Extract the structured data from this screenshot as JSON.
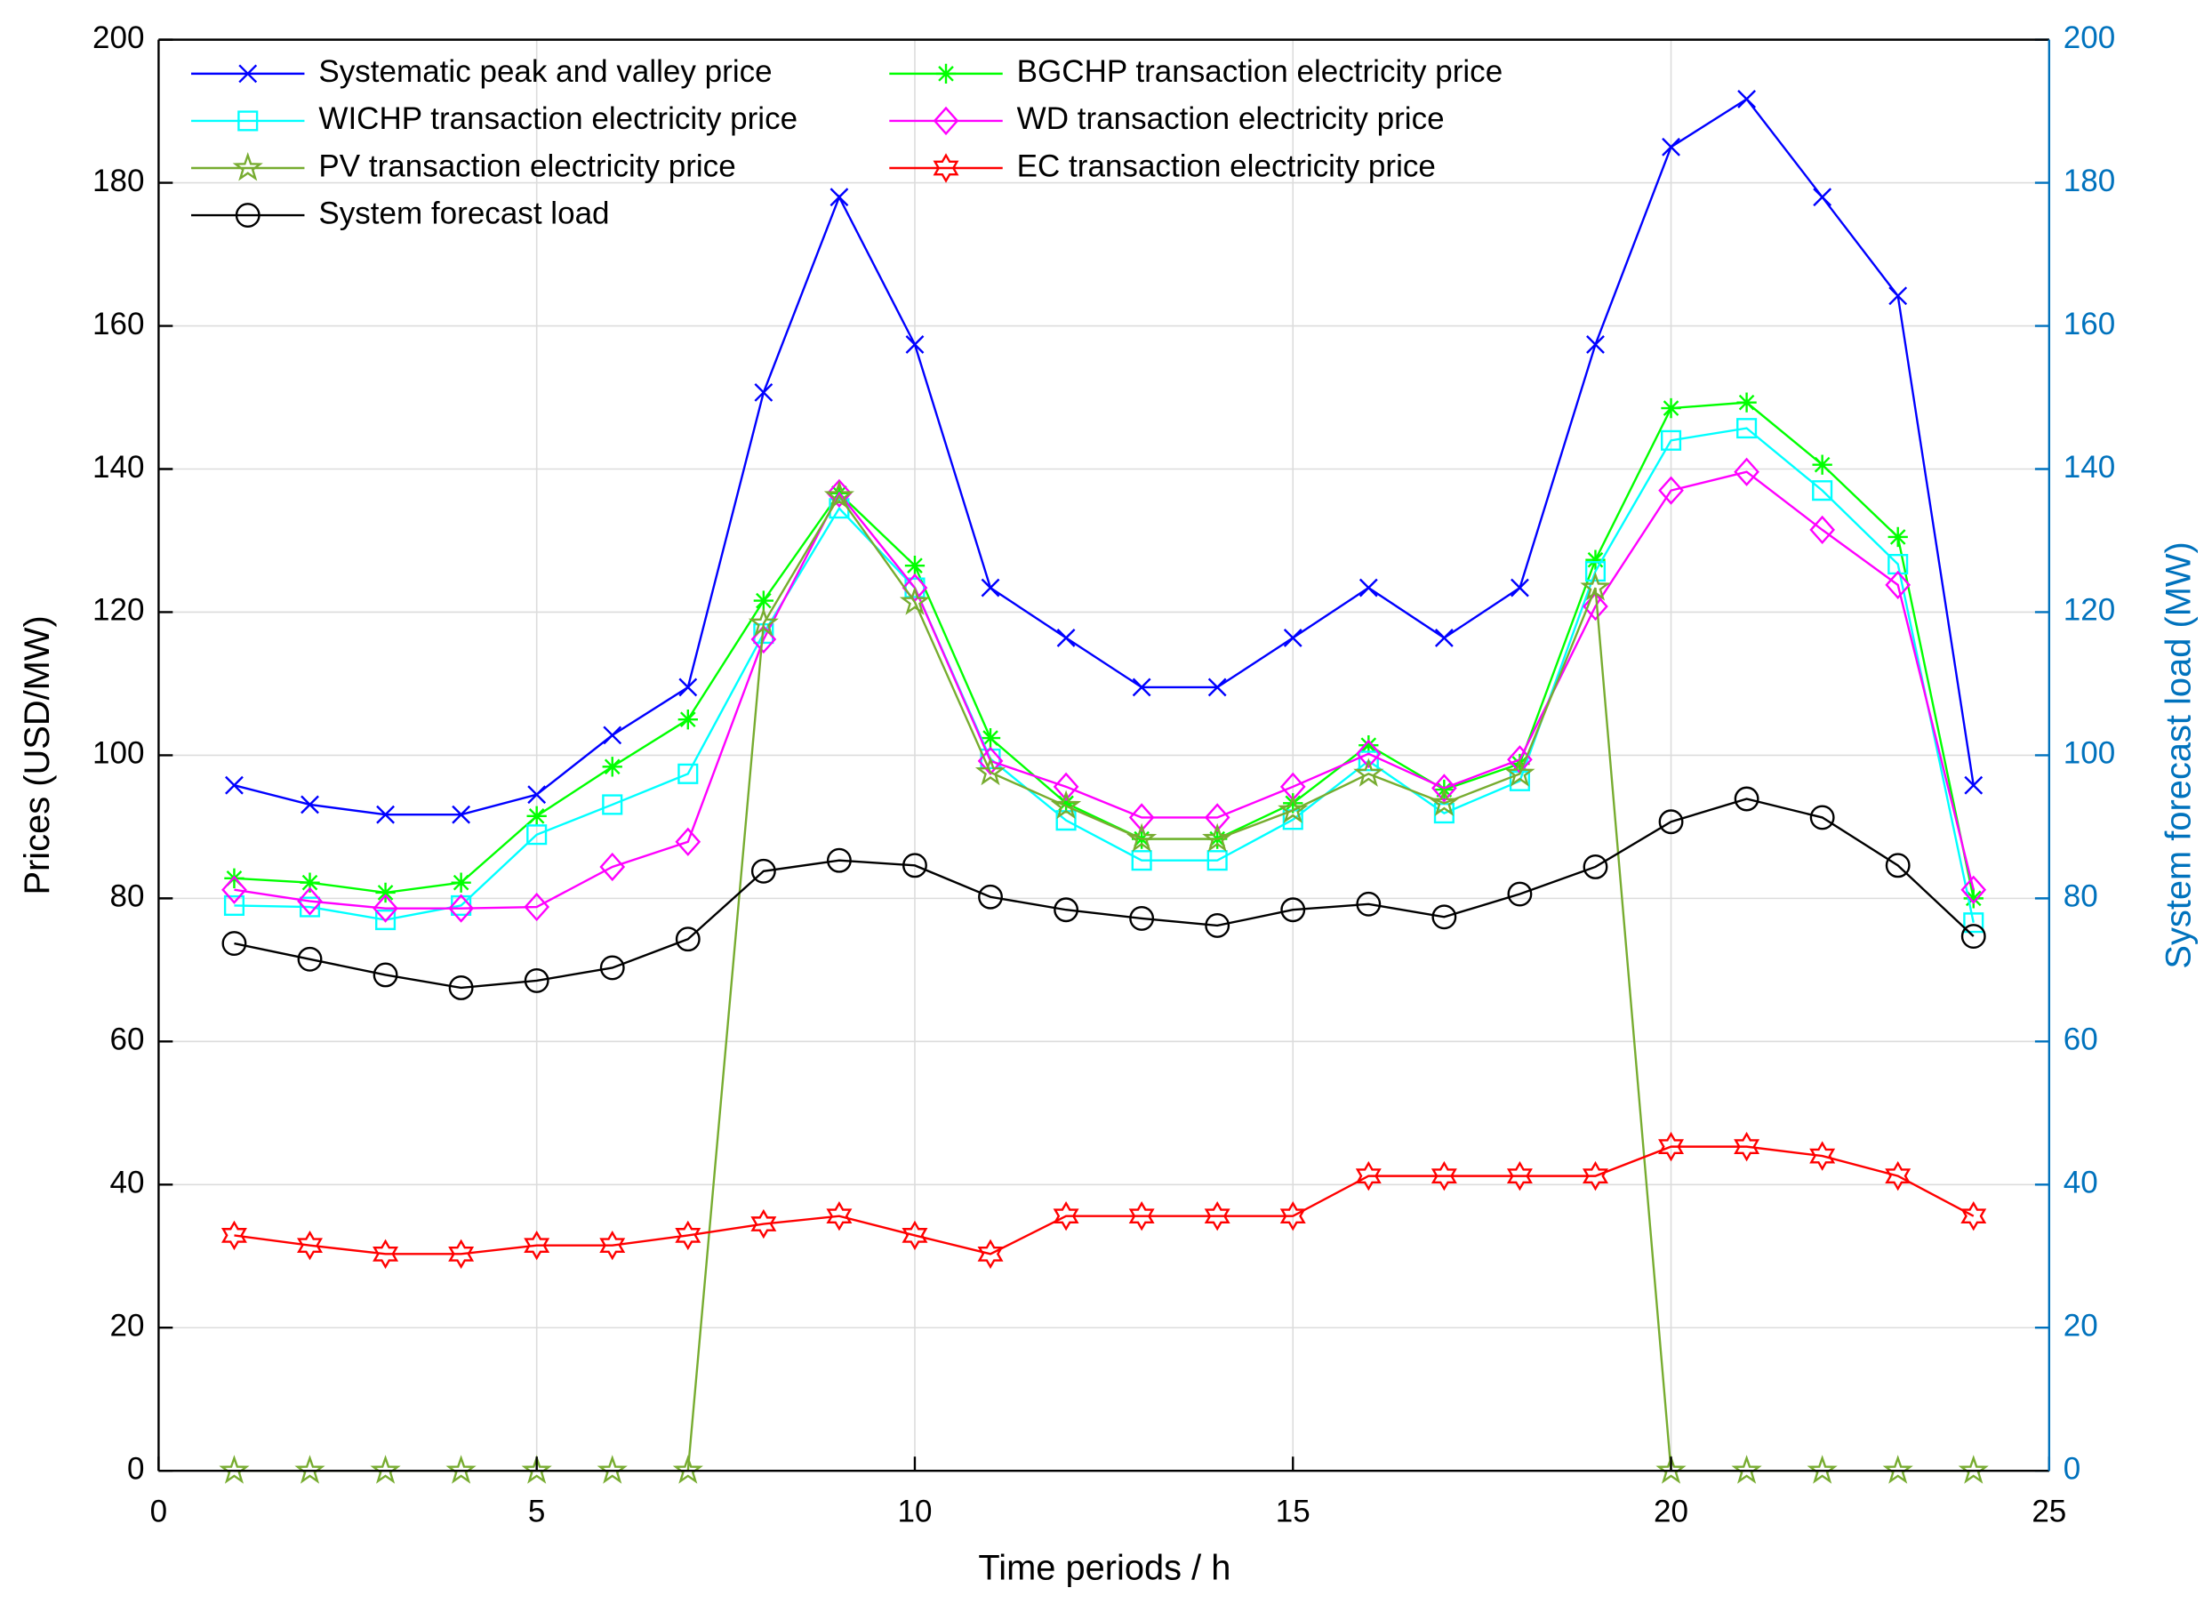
{
  "chart_data": {
    "type": "line",
    "x_label": "Time periods / h",
    "y_label": "Prices (USD/MW)",
    "y2_label": "System forecast load (MW)",
    "x": [
      1,
      2,
      3,
      4,
      5,
      6,
      7,
      8,
      9,
      10,
      11,
      12,
      13,
      14,
      15,
      16,
      17,
      18,
      19,
      20,
      21,
      22,
      23,
      24
    ],
    "xlim": [
      0,
      25
    ],
    "xticks": [
      0,
      5,
      10,
      15,
      20,
      25
    ],
    "ylim": [
      0,
      200
    ],
    "yticks": [
      0,
      20,
      40,
      60,
      80,
      100,
      120,
      140,
      160,
      180,
      200
    ],
    "y2lim": [
      0,
      200
    ],
    "y2ticks": [
      0,
      20,
      40,
      60,
      80,
      100,
      120,
      140,
      160,
      180,
      200
    ],
    "y2_color": "#0072BD",
    "grid": true,
    "legend": "upper left",
    "series": [
      {
        "name": "Systematic peak and valley price",
        "color": "#0000FF",
        "marker": "x",
        "values": [
          95.8,
          93.1,
          91.7,
          91.7,
          94.5,
          102.8,
          109.5,
          150.7,
          178,
          157.4,
          123.4,
          116.4,
          109.5,
          109.5,
          116.4,
          123.4,
          116.4,
          123.4,
          157.4,
          185,
          191.7,
          178,
          164.2,
          95.8
        ]
      },
      {
        "name": "BGCHP transaction electricity price",
        "color": "#00FF00",
        "marker": "asterisk",
        "values": [
          82.8,
          82.2,
          80.8,
          82.2,
          91.5,
          98.4,
          105,
          121.6,
          136.6,
          126.5,
          102.4,
          93.3,
          88.3,
          88.3,
          93.3,
          101.4,
          95.2,
          98.8,
          127.3,
          148.5,
          149.3,
          140.6,
          130.5,
          80
        ]
      },
      {
        "name": "WICHP transaction electricity price",
        "color": "#00FFFF",
        "marker": "square",
        "values": [
          79,
          78.8,
          77,
          79,
          88.9,
          93.1,
          97.4,
          117,
          134.5,
          123.4,
          99.5,
          90.9,
          85.3,
          85.3,
          91,
          99.2,
          91.9,
          96.4,
          125.7,
          144,
          145.7,
          137,
          126.7,
          76.6
        ]
      },
      {
        "name": "WD transaction electricity price",
        "color": "#FF00FF",
        "marker": "diamond",
        "values": [
          81.2,
          79.6,
          78.6,
          78.6,
          78.8,
          84.4,
          87.9,
          116.2,
          136.6,
          123.4,
          99.2,
          95.6,
          91.3,
          91.3,
          95.6,
          100.2,
          95.4,
          99.4,
          120.8,
          137,
          139.6,
          131.5,
          123.8,
          81.2
        ]
      },
      {
        "name": "PV transaction electricity price",
        "color": "#77AC30",
        "marker": "pentagram",
        "values": [
          0,
          0,
          0,
          0,
          0,
          0,
          0,
          118.4,
          136.2,
          121.4,
          97.6,
          92.9,
          88.3,
          88.3,
          92.3,
          97.4,
          93.3,
          97.4,
          123.4,
          0,
          0,
          0,
          0,
          0
        ]
      },
      {
        "name": "EC transaction electricity price",
        "color": "#FF0000",
        "marker": "hexagram",
        "values": [
          32.9,
          31.5,
          30.3,
          30.3,
          31.5,
          31.5,
          32.9,
          34.5,
          35.6,
          32.9,
          30.3,
          35.6,
          35.6,
          35.6,
          35.6,
          41.2,
          41.2,
          41.2,
          41.2,
          45.3,
          45.3,
          44,
          41.2,
          35.6
        ]
      },
      {
        "name": "System forecast load",
        "color": "#000000",
        "marker": "circle",
        "axis": "y2",
        "values": [
          73.7,
          71.5,
          69.3,
          67.5,
          68.5,
          70.3,
          74.3,
          83.8,
          85.3,
          84.6,
          80.2,
          78.4,
          77.2,
          76.2,
          78.4,
          79.2,
          77.4,
          80.6,
          84.4,
          90.7,
          93.9,
          91.3,
          84.6,
          74.7
        ]
      }
    ]
  }
}
